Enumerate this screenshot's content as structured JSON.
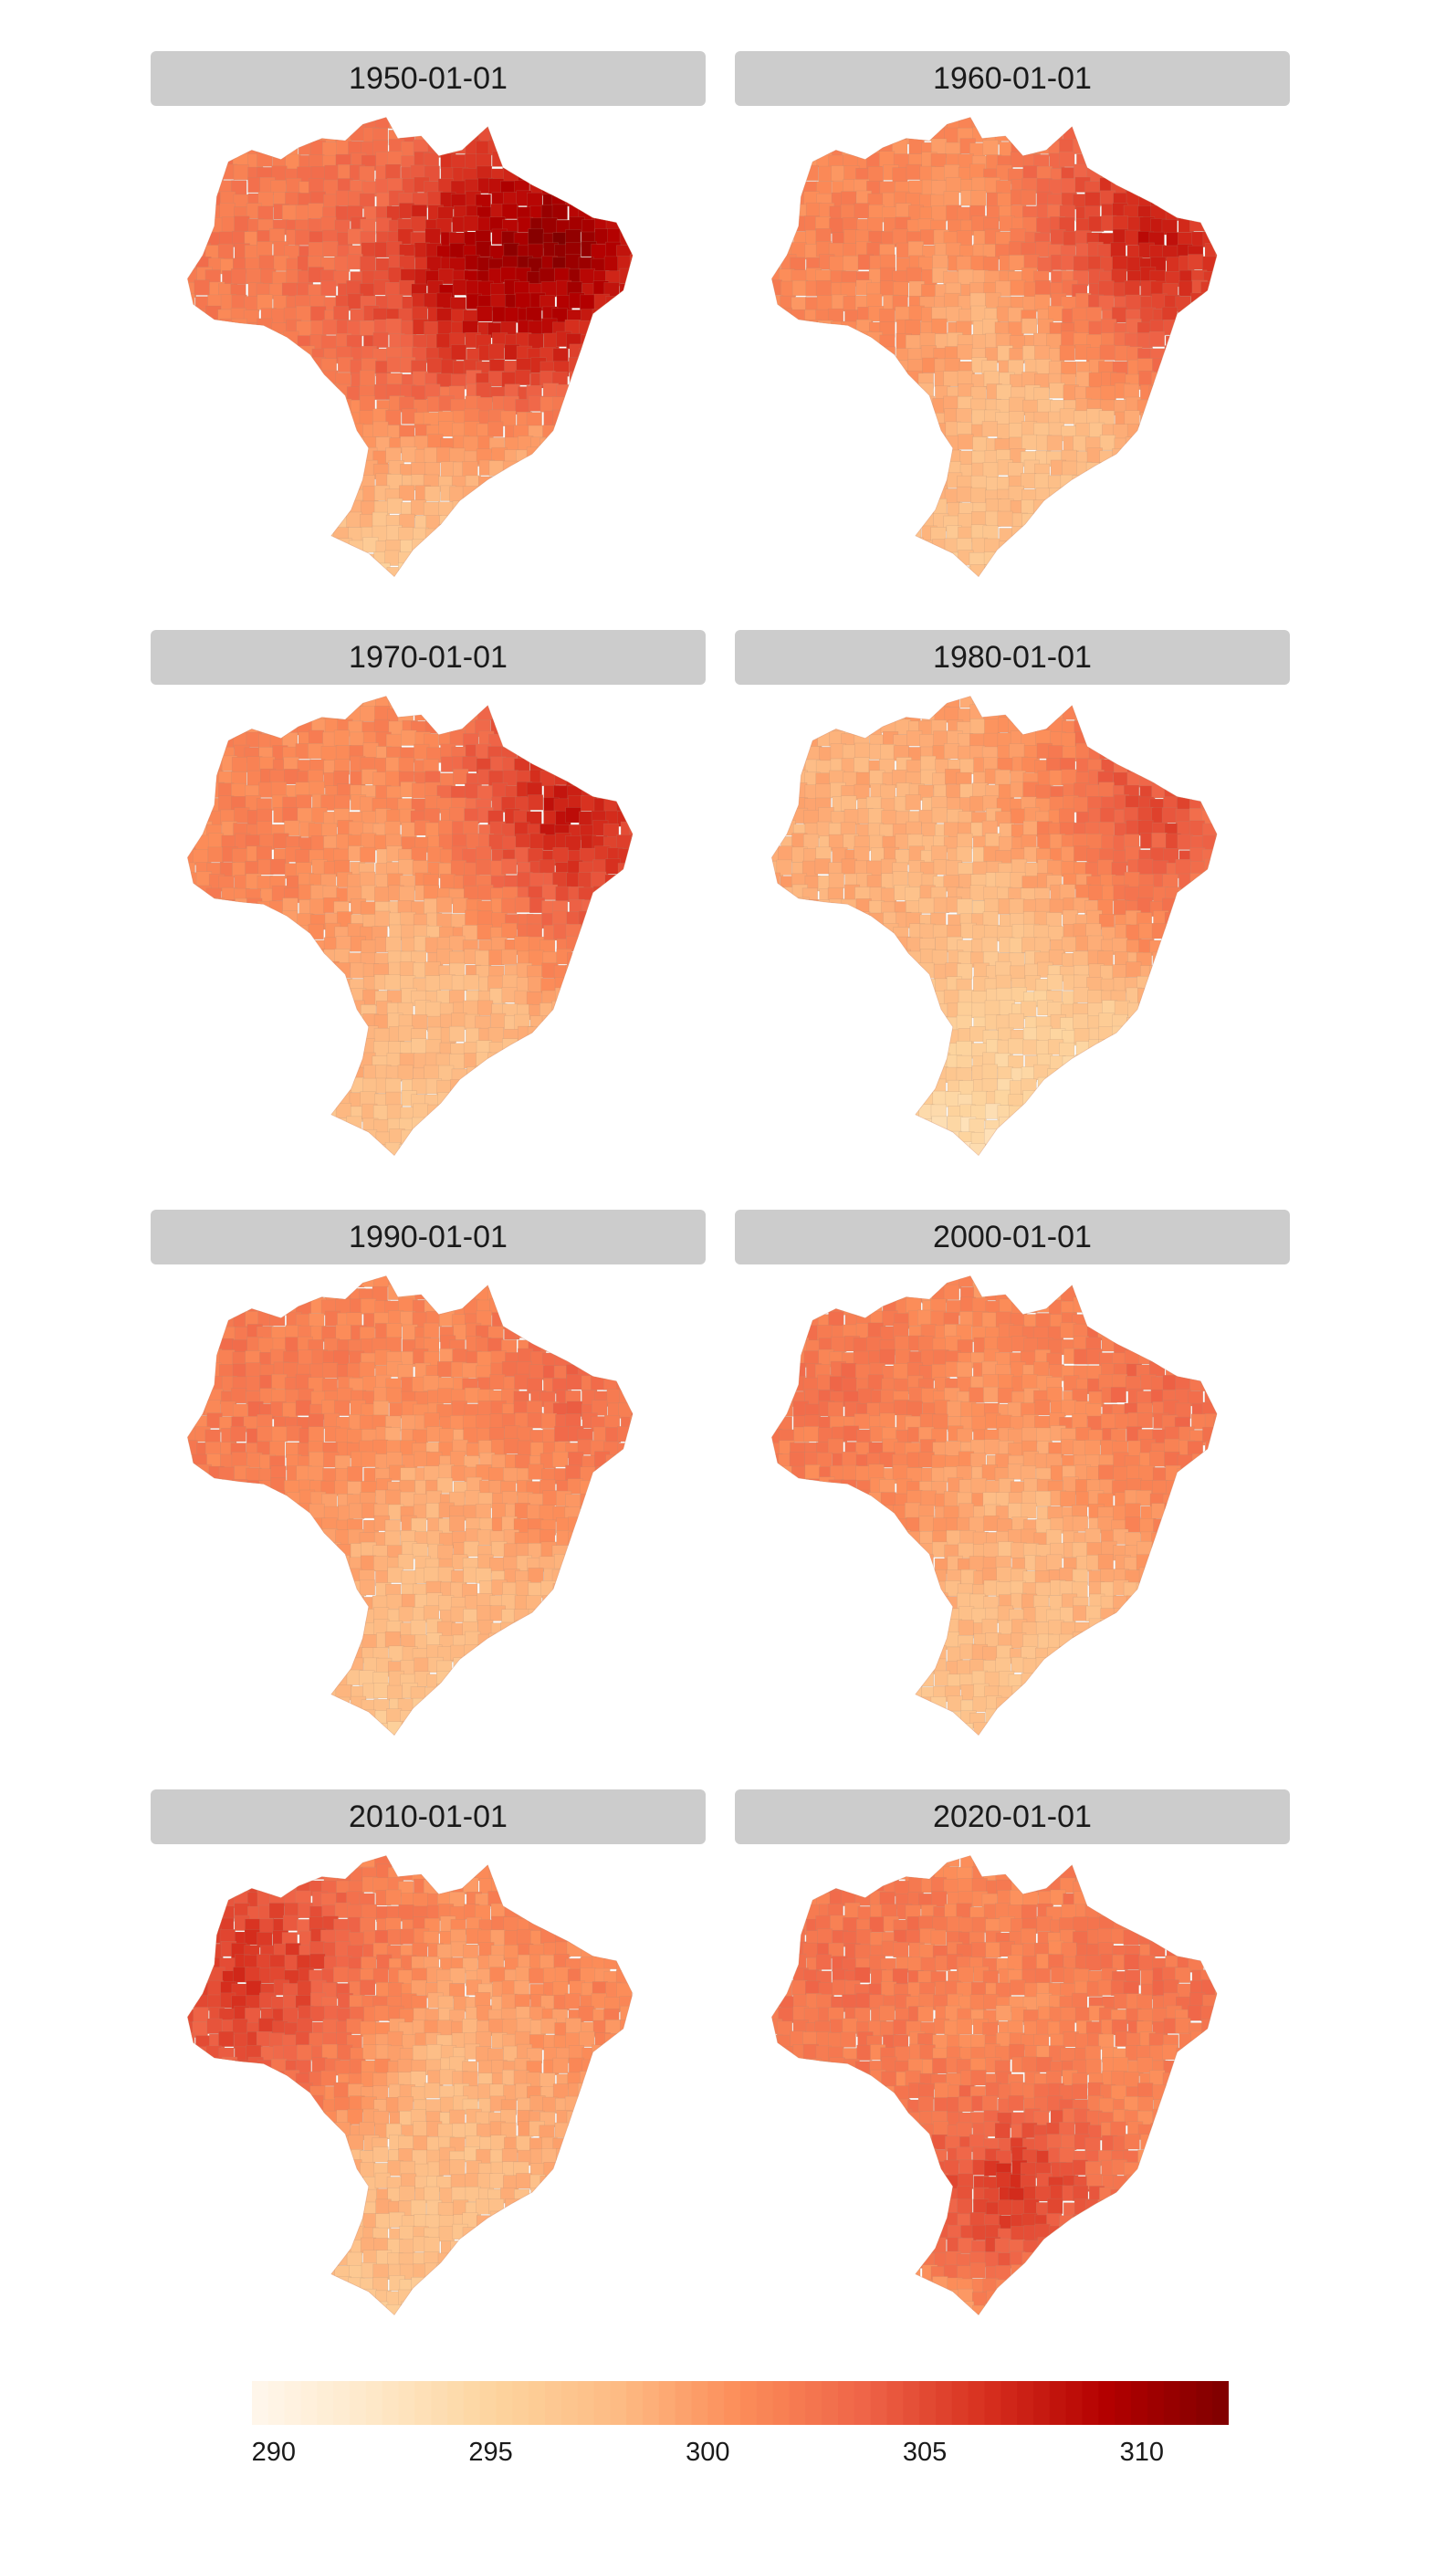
{
  "panels": [
    {
      "label": "1950-01-01",
      "scheme": "hot-north"
    },
    {
      "label": "1960-01-01",
      "scheme": "hot-northeast"
    },
    {
      "label": "1970-01-01",
      "scheme": "hot-northeast"
    },
    {
      "label": "1980-01-01",
      "scheme": "cool"
    },
    {
      "label": "1990-01-01",
      "scheme": "mid"
    },
    {
      "label": "2000-01-01",
      "scheme": "mid"
    },
    {
      "label": "2010-01-01",
      "scheme": "hot-west"
    },
    {
      "label": "2020-01-01",
      "scheme": "hot-southwest"
    }
  ],
  "legend": {
    "ticks": [
      "290",
      "295",
      "300",
      "305",
      "310"
    ],
    "tick_values": [
      290,
      295,
      300,
      305,
      310
    ],
    "range": [
      289.5,
      312
    ],
    "colors": [
      "#fff7ec",
      "#fee8c8",
      "#fdd49e",
      "#fdbb84",
      "#fc8d59",
      "#ef6548",
      "#d7301f",
      "#b30000",
      "#7f0000"
    ]
  }
}
